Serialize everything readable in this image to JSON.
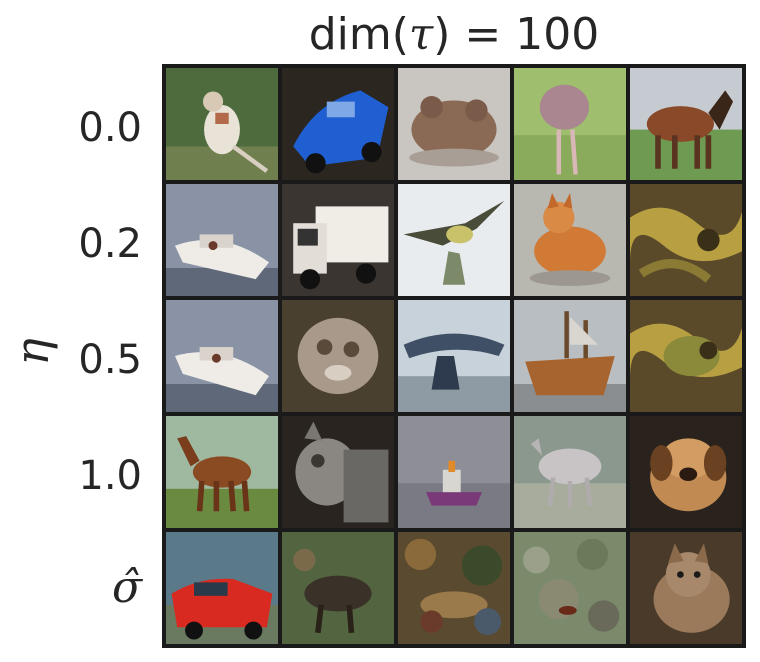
{
  "title_prefix": "dim(",
  "title_symbol": "τ",
  "title_suffix": ") = 100",
  "y_axis_label": "η",
  "rows": [
    {
      "label": "0.0",
      "cells": [
        "bird-image",
        "blue-car-image",
        "frog-image",
        "ostrich-image",
        "horse-image"
      ]
    },
    {
      "label": "0.2",
      "cells": [
        "boat-image",
        "truck-image",
        "bird-flying-image",
        "orange-cat-image",
        "frog-texture-image"
      ]
    },
    {
      "label": "0.5",
      "cells": [
        "boat-image",
        "cat-blurry-image",
        "airplane-image",
        "ship-image",
        "frog-texture-image"
      ]
    },
    {
      "label": "1.0",
      "cells": [
        "horse-image",
        "cat-gray-image",
        "boat-small-image",
        "deer-image",
        "dog-image"
      ]
    },
    {
      "label": "σ̂",
      "cells": [
        "red-car-image",
        "deer-noisy-image",
        "noisy-image",
        "noisy-image",
        "cat-image"
      ]
    }
  ]
}
